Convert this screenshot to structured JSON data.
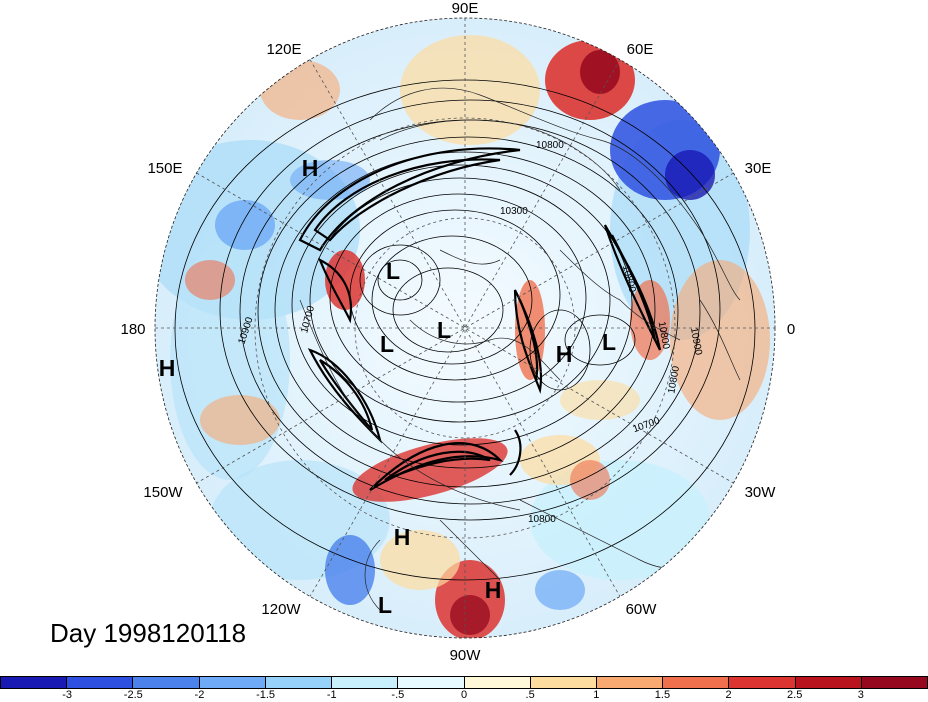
{
  "title": "Day 1998120118",
  "longitude_labels": {
    "lon_90e": "90E",
    "lon_60e": "60E",
    "lon_120e": "120E",
    "lon_150e": "150E",
    "lon_30e": "30E",
    "lon_180": "180",
    "lon_0": "0",
    "lon_150w": "150W",
    "lon_30w": "30W",
    "lon_120w": "120W",
    "lon_60w": "60W",
    "lon_90w": "90W"
  },
  "pressure_centers": [
    {
      "label": "H",
      "note": "near 150E"
    },
    {
      "label": "L",
      "note": "east Siberia"
    },
    {
      "label": "L",
      "note": "Arctic"
    },
    {
      "label": "L",
      "note": "Arctic near pole"
    },
    {
      "label": "H",
      "note": "Greenland sea"
    },
    {
      "label": "L",
      "note": "north Atlantic"
    },
    {
      "label": "H",
      "note": "west of 180"
    },
    {
      "label": "H",
      "note": "eastern Pacific"
    },
    {
      "label": "L",
      "note": "tropical east Pacific"
    },
    {
      "label": "H",
      "note": "Caribbean"
    }
  ],
  "contour_labels": [
    "10800",
    "10300",
    "10700",
    "10900",
    "10800",
    "10800",
    "10900",
    "10800",
    "10700",
    "10800"
  ],
  "colorbar": {
    "ticks": [
      "-3",
      "-2.5",
      "-2",
      "-1.5",
      "-1",
      "-.5",
      "0",
      ".5",
      "1",
      "1.5",
      "2",
      "2.5",
      "3"
    ],
    "colors": [
      "#1919b3",
      "#2d50e1",
      "#4b82ec",
      "#6eaaf5",
      "#96d2fa",
      "#c8f0fc",
      "#e6faff",
      "#fff8d8",
      "#fddc9f",
      "#f9a972",
      "#f0704d",
      "#dc3531",
      "#b9141e",
      "#96081e"
    ]
  }
}
